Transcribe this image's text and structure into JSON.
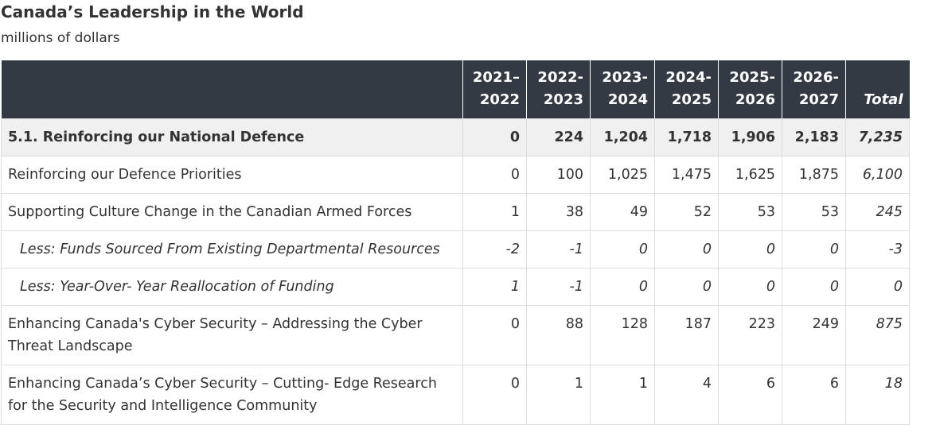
{
  "title": "Canada’s Leadership in the World",
  "subtitle": "millions of dollars",
  "table": {
    "headers": [
      "",
      "2021–\n2022",
      "2022-\n2023",
      "2023-\n2024",
      "2024-\n2025",
      "2025-\n2026",
      "2026-\n2027",
      "Total"
    ],
    "rows": [
      {
        "style": "bold",
        "label": "5.1. Reinforcing our National Defence",
        "values": [
          "0",
          "224",
          "1,204",
          "1,718",
          "1,906",
          "2,183"
        ],
        "total": "7,235"
      },
      {
        "style": "normal",
        "label": "Reinforcing our Defence Priorities",
        "values": [
          "0",
          "100",
          "1,025",
          "1,475",
          "1,625",
          "1,875"
        ],
        "total": "6,100"
      },
      {
        "style": "normal",
        "label": "Supporting Culture Change in the Canadian Armed Forces",
        "values": [
          "1",
          "38",
          "49",
          "52",
          "53",
          "53"
        ],
        "total": "245"
      },
      {
        "style": "italic",
        "label": "Less: Funds Sourced From Existing Departmental Resources",
        "values": [
          "-2",
          "-1",
          "0",
          "0",
          "0",
          "0"
        ],
        "total": "-3"
      },
      {
        "style": "italic",
        "label": "Less: Year-Over- Year Reallocation of Funding",
        "values": [
          "1",
          "-1",
          "0",
          "0",
          "0",
          "0"
        ],
        "total": "0"
      },
      {
        "style": "normal",
        "label": "Enhancing Canada's Cyber Security – Addressing the Cyber Threat Landscape",
        "values": [
          "0",
          "88",
          "128",
          "187",
          "223",
          "249"
        ],
        "total": "875"
      },
      {
        "style": "normal",
        "label": "Enhancing Canada’s Cyber Security – Cutting- Edge Research for the Security and Intelligence Community",
        "values": [
          "0",
          "1",
          "1",
          "4",
          "6",
          "6"
        ],
        "total": "18"
      }
    ]
  }
}
